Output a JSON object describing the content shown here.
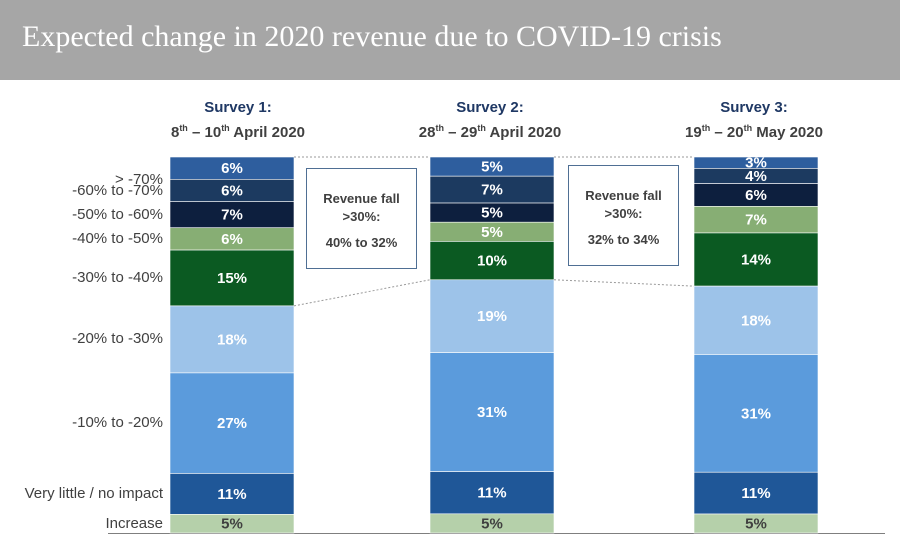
{
  "title": "Expected change in 2020 revenue due to COVID-19 crisis",
  "surveys": [
    {
      "name": "Survey 1:",
      "d1": "8",
      "s1": "th",
      "mid": " – 10",
      "s2": "th",
      "rest": " April 2020"
    },
    {
      "name": "Survey 2:",
      "d1": "28",
      "s1": "th",
      "mid": " – 29",
      "s2": "th",
      "rest": " April 2020"
    },
    {
      "name": "Survey 3:",
      "d1": "19",
      "s1": "th",
      "mid": " – 20",
      "s2": "th",
      "rest": " May 2020"
    }
  ],
  "callouts": [
    {
      "line1": "Revenue fall",
      "line2": ">30%:",
      "line3": "40% to 32%"
    },
    {
      "line1": "Revenue fall",
      "line2": ">30%:",
      "line3": "32% to 34%"
    }
  ],
  "chart_data": {
    "type": "bar",
    "stacked": true,
    "normalized": true,
    "title": "Expected change in 2020 revenue due to COVID-19 crisis",
    "categories": [
      "Survey 1",
      "Survey 2",
      "Survey 3"
    ],
    "series": [
      {
        "name": "> -70%",
        "color": "#2e5e9e",
        "text": "#ffffff",
        "values": [
          6,
          5,
          3
        ]
      },
      {
        "name": "-60% to -70%",
        "color": "#1c3a60",
        "text": "#ffffff",
        "values": [
          6,
          7,
          4
        ]
      },
      {
        "name": "-50% to -60%",
        "color": "#0d1f3e",
        "text": "#ffffff",
        "values": [
          7,
          5,
          6
        ]
      },
      {
        "name": "-40% to -50%",
        "color": "#87ae74",
        "text": "#ffffff",
        "values": [
          6,
          5,
          7
        ]
      },
      {
        "name": "-30% to -40%",
        "color": "#0b5a22",
        "text": "#ffffff",
        "values": [
          15,
          10,
          14
        ]
      },
      {
        "name": "-20% to -30%",
        "color": "#9dc3e9",
        "text": "#ffffff",
        "values": [
          18,
          19,
          18
        ]
      },
      {
        "name": "-10% to -20%",
        "color": "#5b9bdc",
        "text": "#ffffff",
        "values": [
          27,
          31,
          31
        ]
      },
      {
        "name": "Very little / no impact",
        "color": "#1f5798",
        "text": "#ffffff",
        "values": [
          11,
          11,
          11
        ]
      },
      {
        "name": "Increase",
        "color": "#b5d0aa",
        "text": "#404040",
        "values": [
          5,
          5,
          5
        ]
      }
    ],
    "value_labels": [
      [
        "6%",
        "6%",
        "7%",
        "6%",
        "15%",
        "18%",
        "27%",
        "11%",
        "5%"
      ],
      [
        "5%",
        "7%",
        "5%",
        "5%",
        "10%",
        "19%",
        "31%",
        "11%",
        "5%"
      ],
      [
        "3%",
        "4%",
        "6%",
        "7%",
        "14%",
        "18%",
        "31%",
        "11%",
        "5%"
      ]
    ]
  }
}
